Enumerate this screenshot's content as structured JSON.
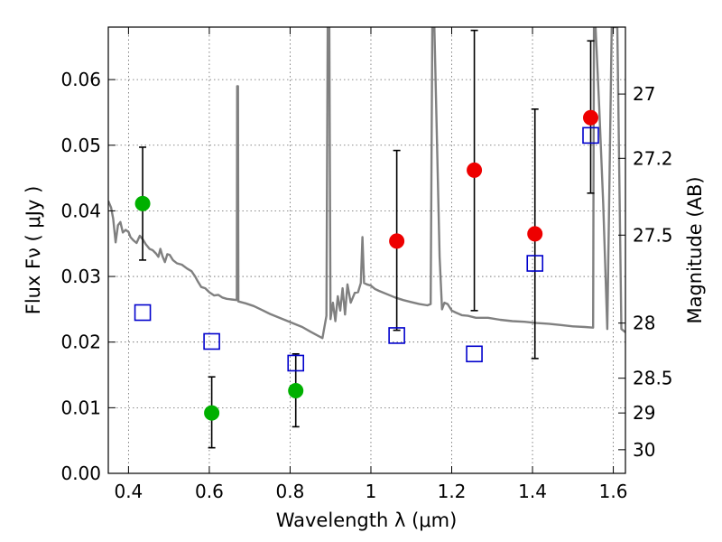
{
  "chart_data": {
    "type": "scatter",
    "xlabel": "Wavelength  λ (μm)",
    "ylabel": "Flux  Fν  ( μJy )",
    "ylabel_right": "Magnitude (AB)",
    "xlim": [
      0.35,
      1.63
    ],
    "ylim": [
      0.0,
      0.068
    ],
    "grid": true,
    "x_ticks": [
      0.4,
      0.6,
      0.8,
      1.0,
      1.2,
      1.4,
      1.6
    ],
    "x_tick_labels": [
      "0.4",
      "0.6",
      "0.8",
      "1",
      "1.2",
      "1.4",
      "1.6"
    ],
    "y_ticks": [
      0.0,
      0.01,
      0.02,
      0.03,
      0.04,
      0.05,
      0.06
    ],
    "y_tick_labels": [
      "0.00",
      "0.01",
      "0.02",
      "0.03",
      "0.04",
      "0.05",
      "0.06"
    ],
    "right_ticks": [
      {
        "flux": 0.0578,
        "label": "27"
      },
      {
        "flux": 0.048,
        "label": "27.2"
      },
      {
        "flux": 0.0363,
        "label": "27.5"
      },
      {
        "flux": 0.0229,
        "label": "28"
      },
      {
        "flux": 0.0145,
        "label": "28.5"
      },
      {
        "flux": 0.0092,
        "label": "29"
      },
      {
        "flux": 0.0036,
        "label": "30"
      }
    ],
    "colors": {
      "model": "#808080",
      "green": "#00b000",
      "red": "#ee0000",
      "square": "#0000cc",
      "errorbar": "#000000"
    },
    "series": [
      {
        "marker": "circle",
        "color": "green",
        "points": [
          {
            "x": 0.435,
            "y": 0.0411,
            "err_low": 0.0325,
            "err_high": 0.0497
          },
          {
            "x": 0.606,
            "y": 0.0092,
            "err_low": 0.0039,
            "err_high": 0.0147
          },
          {
            "x": 0.814,
            "y": 0.0126,
            "err_low": 0.0071,
            "err_high": 0.0182
          }
        ]
      },
      {
        "marker": "circle",
        "color": "red",
        "points": [
          {
            "x": 1.064,
            "y": 0.0354,
            "err_low": 0.0218,
            "err_high": 0.0492
          },
          {
            "x": 1.256,
            "y": 0.0462,
            "err_low": 0.0248,
            "err_high": 0.0675
          },
          {
            "x": 1.406,
            "y": 0.0365,
            "err_low": 0.0175,
            "err_high": 0.0555
          },
          {
            "x": 1.544,
            "y": 0.0542,
            "err_low": 0.0427,
            "err_high": 0.0659
          }
        ]
      },
      {
        "marker": "square",
        "color": "square",
        "points": [
          {
            "x": 0.435,
            "y": 0.0245
          },
          {
            "x": 0.606,
            "y": 0.0201
          },
          {
            "x": 0.814,
            "y": 0.0168
          },
          {
            "x": 1.064,
            "y": 0.021
          },
          {
            "x": 1.256,
            "y": 0.0182
          },
          {
            "x": 1.406,
            "y": 0.032
          },
          {
            "x": 1.544,
            "y": 0.0515
          }
        ]
      },
      {
        "marker": "line",
        "color": "model",
        "points": [
          [
            0.35,
            0.0415
          ],
          [
            0.357,
            0.0405
          ],
          [
            0.362,
            0.0388
          ],
          [
            0.368,
            0.0352
          ],
          [
            0.374,
            0.0378
          ],
          [
            0.38,
            0.0383
          ],
          [
            0.386,
            0.0367
          ],
          [
            0.393,
            0.0371
          ],
          [
            0.4,
            0.0368
          ],
          [
            0.405,
            0.036
          ],
          [
            0.412,
            0.0355
          ],
          [
            0.42,
            0.0351
          ],
          [
            0.428,
            0.0362
          ],
          [
            0.436,
            0.0356
          ],
          [
            0.443,
            0.0349
          ],
          [
            0.452,
            0.0342
          ],
          [
            0.46,
            0.034
          ],
          [
            0.468,
            0.0335
          ],
          [
            0.474,
            0.033
          ],
          [
            0.479,
            0.0342
          ],
          [
            0.484,
            0.0331
          ],
          [
            0.49,
            0.0322
          ],
          [
            0.496,
            0.0334
          ],
          [
            0.502,
            0.0333
          ],
          [
            0.51,
            0.0325
          ],
          [
            0.52,
            0.032
          ],
          [
            0.532,
            0.0318
          ],
          [
            0.545,
            0.0312
          ],
          [
            0.556,
            0.0308
          ],
          [
            0.565,
            0.03
          ],
          [
            0.572,
            0.0292
          ],
          [
            0.58,
            0.0284
          ],
          [
            0.59,
            0.0282
          ],
          [
            0.6,
            0.0276
          ],
          [
            0.612,
            0.0271
          ],
          [
            0.622,
            0.0272
          ],
          [
            0.632,
            0.0268
          ],
          [
            0.643,
            0.0266
          ],
          [
            0.655,
            0.0265
          ],
          [
            0.668,
            0.0264
          ],
          [
            0.669,
            0.059
          ],
          [
            0.671,
            0.059
          ],
          [
            0.672,
            0.0262
          ],
          [
            0.69,
            0.0259
          ],
          [
            0.71,
            0.0255
          ],
          [
            0.73,
            0.0249
          ],
          [
            0.75,
            0.0243
          ],
          [
            0.77,
            0.0238
          ],
          [
            0.79,
            0.0233
          ],
          [
            0.81,
            0.0228
          ],
          [
            0.83,
            0.0223
          ],
          [
            0.85,
            0.0216
          ],
          [
            0.868,
            0.021
          ],
          [
            0.88,
            0.0206
          ],
          [
            0.89,
            0.024
          ],
          [
            0.893,
            0.068
          ],
          [
            0.897,
            0.068
          ],
          [
            0.9,
            0.0235
          ],
          [
            0.906,
            0.026
          ],
          [
            0.912,
            0.0232
          ],
          [
            0.918,
            0.027
          ],
          [
            0.924,
            0.0248
          ],
          [
            0.93,
            0.0282
          ],
          [
            0.936,
            0.0242
          ],
          [
            0.942,
            0.0288
          ],
          [
            0.95,
            0.026
          ],
          [
            0.96,
            0.0275
          ],
          [
            0.968,
            0.0276
          ],
          [
            0.975,
            0.029
          ],
          [
            0.979,
            0.036
          ],
          [
            0.983,
            0.029
          ],
          [
            0.99,
            0.0288
          ],
          [
            1.0,
            0.0286
          ],
          [
            1.01,
            0.0281
          ],
          [
            1.02,
            0.0278
          ],
          [
            1.04,
            0.0273
          ],
          [
            1.06,
            0.0268
          ],
          [
            1.08,
            0.0264
          ],
          [
            1.1,
            0.0261
          ],
          [
            1.12,
            0.0258
          ],
          [
            1.14,
            0.0256
          ],
          [
            1.148,
            0.0258
          ],
          [
            1.152,
            0.068
          ],
          [
            1.157,
            0.068
          ],
          [
            1.17,
            0.033
          ],
          [
            1.176,
            0.025
          ],
          [
            1.182,
            0.026
          ],
          [
            1.19,
            0.0258
          ],
          [
            1.2,
            0.0248
          ],
          [
            1.21,
            0.0245
          ],
          [
            1.225,
            0.0241
          ],
          [
            1.24,
            0.024
          ],
          [
            1.26,
            0.0237
          ],
          [
            1.29,
            0.0237
          ],
          [
            1.32,
            0.0234
          ],
          [
            1.35,
            0.0232
          ],
          [
            1.38,
            0.0231
          ],
          [
            1.41,
            0.0229
          ],
          [
            1.44,
            0.0228
          ],
          [
            1.47,
            0.0226
          ],
          [
            1.5,
            0.0224
          ],
          [
            1.53,
            0.0223
          ],
          [
            1.55,
            0.0222
          ],
          [
            1.552,
            0.068
          ],
          [
            1.556,
            0.068
          ],
          [
            1.565,
            0.056
          ],
          [
            1.575,
            0.041
          ],
          [
            1.585,
            0.022
          ],
          [
            1.596,
            0.068
          ],
          [
            1.61,
            0.068
          ],
          [
            1.62,
            0.022
          ],
          [
            1.63,
            0.0215
          ]
        ]
      }
    ]
  }
}
